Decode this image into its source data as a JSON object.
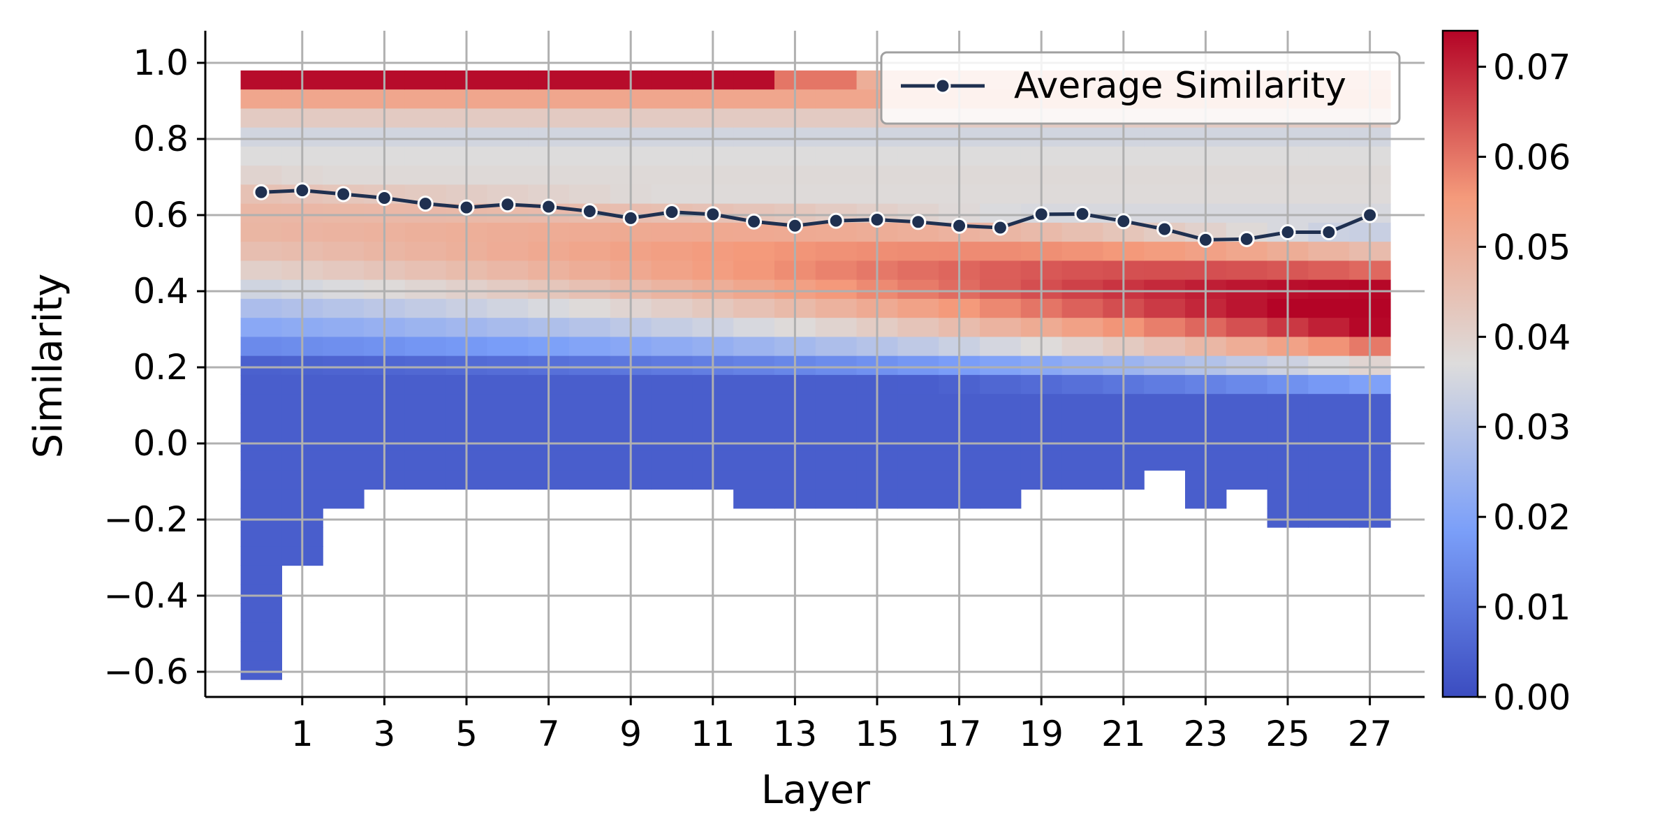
{
  "chart_data": {
    "type": "heatmap",
    "xlabel": "Layer",
    "ylabel": "Similarity",
    "xticks": [
      "1",
      "3",
      "5",
      "7",
      "9",
      "11",
      "13",
      "15",
      "17",
      "19",
      "21",
      "23",
      "25",
      "27"
    ],
    "yticks": [
      "1.0",
      "0.8",
      "0.6",
      "0.4",
      "0.2",
      "0.0",
      "−0.2",
      "−0.4",
      "−0.6"
    ],
    "colorbar": {
      "ticks": [
        "0.00",
        "0.01",
        "0.02",
        "0.03",
        "0.04",
        "0.05",
        "0.06",
        "0.07"
      ],
      "range": [
        0,
        0.074
      ],
      "colormap": "coolwarm"
    },
    "grid": true,
    "legend_position": "top-right",
    "layers": [
      0,
      1,
      2,
      3,
      4,
      5,
      6,
      7,
      8,
      9,
      10,
      11,
      12,
      13,
      14,
      15,
      16,
      17,
      18,
      19,
      20,
      21,
      22,
      23,
      24,
      25,
      26,
      27
    ],
    "distribution_min": [
      -0.58,
      -0.32,
      -0.16,
      -0.11,
      -0.11,
      -0.11,
      -0.11,
      -0.11,
      -0.11,
      -0.11,
      -0.11,
      -0.11,
      -0.16,
      -0.16,
      -0.16,
      -0.16,
      -0.16,
      -0.16,
      -0.16,
      -0.11,
      -0.11,
      -0.11,
      -0.06,
      -0.16,
      -0.11,
      -0.21,
      -0.21,
      -0.21
    ],
    "series": [
      {
        "name": "Average Similarity",
        "type": "line",
        "color": "#1f3050",
        "values": [
          0.66,
          0.665,
          0.655,
          0.645,
          0.63,
          0.62,
          0.628,
          0.622,
          0.61,
          0.592,
          0.608,
          0.602,
          0.583,
          0.572,
          0.585,
          0.588,
          0.582,
          0.572,
          0.567,
          0.602,
          0.603,
          0.584,
          0.563,
          0.535,
          0.537,
          0.555,
          0.555,
          0.6
        ]
      }
    ]
  }
}
